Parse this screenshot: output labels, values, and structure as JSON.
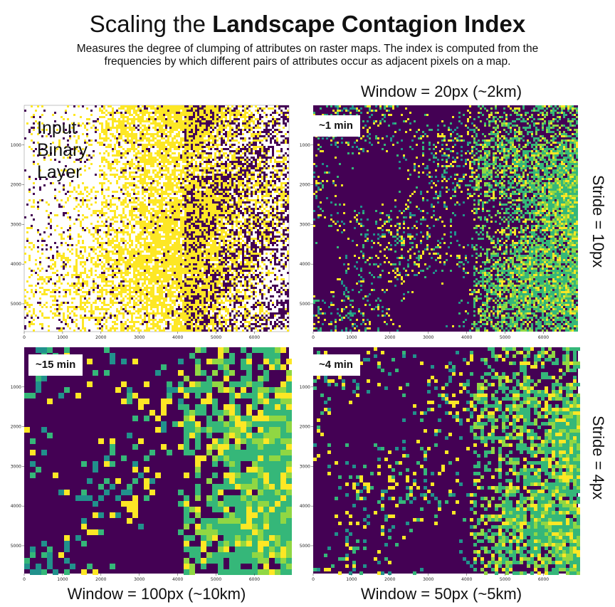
{
  "header": {
    "title_prefix": "Scaling the ",
    "title_bold": "Landscape Contagion Index",
    "subtitle_line1": "Measures the degree of clumping of attributes on raster maps. The index is computed from the",
    "subtitle_line2": "frequencies by which different pairs of attributes occur as adjacent pixels on a map."
  },
  "labels": {
    "top_window": "Window = 20px (~2km)",
    "bottom_left_window": "Window = 100px (~10km)",
    "bottom_right_window": "Window = 50px (~5km)",
    "stride_top": "Stride = 10px",
    "stride_bottom": "Stride = 4px"
  },
  "panels": [
    {
      "id": "input",
      "lines": [
        "Input",
        "Binary",
        "Layer"
      ],
      "badge": ""
    },
    {
      "id": "w20",
      "badge": "~1 min"
    },
    {
      "id": "w100",
      "badge": "~15 min"
    },
    {
      "id": "w50",
      "badge": "~4 min"
    }
  ],
  "axis": {
    "x_ticks": [
      "0",
      "1000",
      "2000",
      "3000",
      "4000",
      "5000",
      "6000"
    ],
    "y_ticks": [
      "1000",
      "2000",
      "3000",
      "4000",
      "5000"
    ]
  },
  "colors": {
    "viridis_dark": "#440154",
    "viridis_green": "#35b779",
    "viridis_lime": "#90d743",
    "viridis_yellow": "#fde725",
    "teal": "#21918c"
  }
}
